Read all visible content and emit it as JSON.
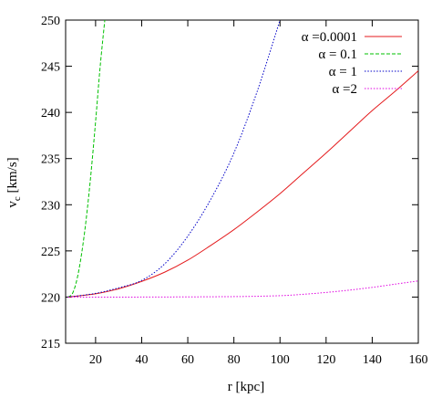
{
  "chart_data": {
    "type": "line",
    "title": "",
    "xlabel": "r [kpc]",
    "ylabel": "v_c [km/s]",
    "ylabel_main": "v",
    "ylabel_sub": "c",
    "ylabel_rest": " [km/s]",
    "xlim": [
      7,
      160
    ],
    "ylim": [
      215,
      250
    ],
    "xticks": [
      20,
      40,
      60,
      80,
      100,
      120,
      140,
      160
    ],
    "yticks": [
      215,
      220,
      225,
      230,
      235,
      240,
      245,
      250
    ],
    "grid": false,
    "legend_position": "top-right",
    "series": [
      {
        "name": "α =0.0001",
        "color": "#e41a1c",
        "dash": "solid",
        "x": [
          8,
          20,
          30,
          40,
          50,
          60,
          70,
          80,
          90,
          100,
          110,
          120,
          130,
          140,
          150,
          160
        ],
        "y": [
          220.0,
          220.35,
          220.9,
          221.7,
          222.7,
          224.0,
          225.6,
          227.3,
          229.2,
          231.2,
          233.4,
          235.6,
          237.9,
          240.2,
          242.3,
          244.5
        ]
      },
      {
        "name": "α = 0.1",
        "color": "#00c000",
        "dash": "dashed",
        "x": [
          8,
          10,
          12,
          14,
          16,
          18,
          20,
          22,
          24
        ],
        "y": [
          220.0,
          220.4,
          222.0,
          224.8,
          228.6,
          233.4,
          239.0,
          245.0,
          250.0
        ]
      },
      {
        "name": "α = 1",
        "color": "#0000c8",
        "dash": "dotted",
        "x": [
          8,
          20,
          30,
          40,
          50,
          60,
          70,
          80,
          90,
          100
        ],
        "y": [
          220.0,
          220.4,
          221.0,
          221.8,
          223.6,
          226.6,
          230.6,
          235.6,
          242.2,
          250.0
        ]
      },
      {
        "name": "α =2",
        "color": "#e000e0",
        "dash": "dotted",
        "x": [
          8,
          40,
          80,
          100,
          110,
          120,
          130,
          140,
          150,
          160
        ],
        "y": [
          220.0,
          220.0,
          220.05,
          220.15,
          220.3,
          220.5,
          220.75,
          221.05,
          221.4,
          221.75
        ]
      }
    ]
  }
}
